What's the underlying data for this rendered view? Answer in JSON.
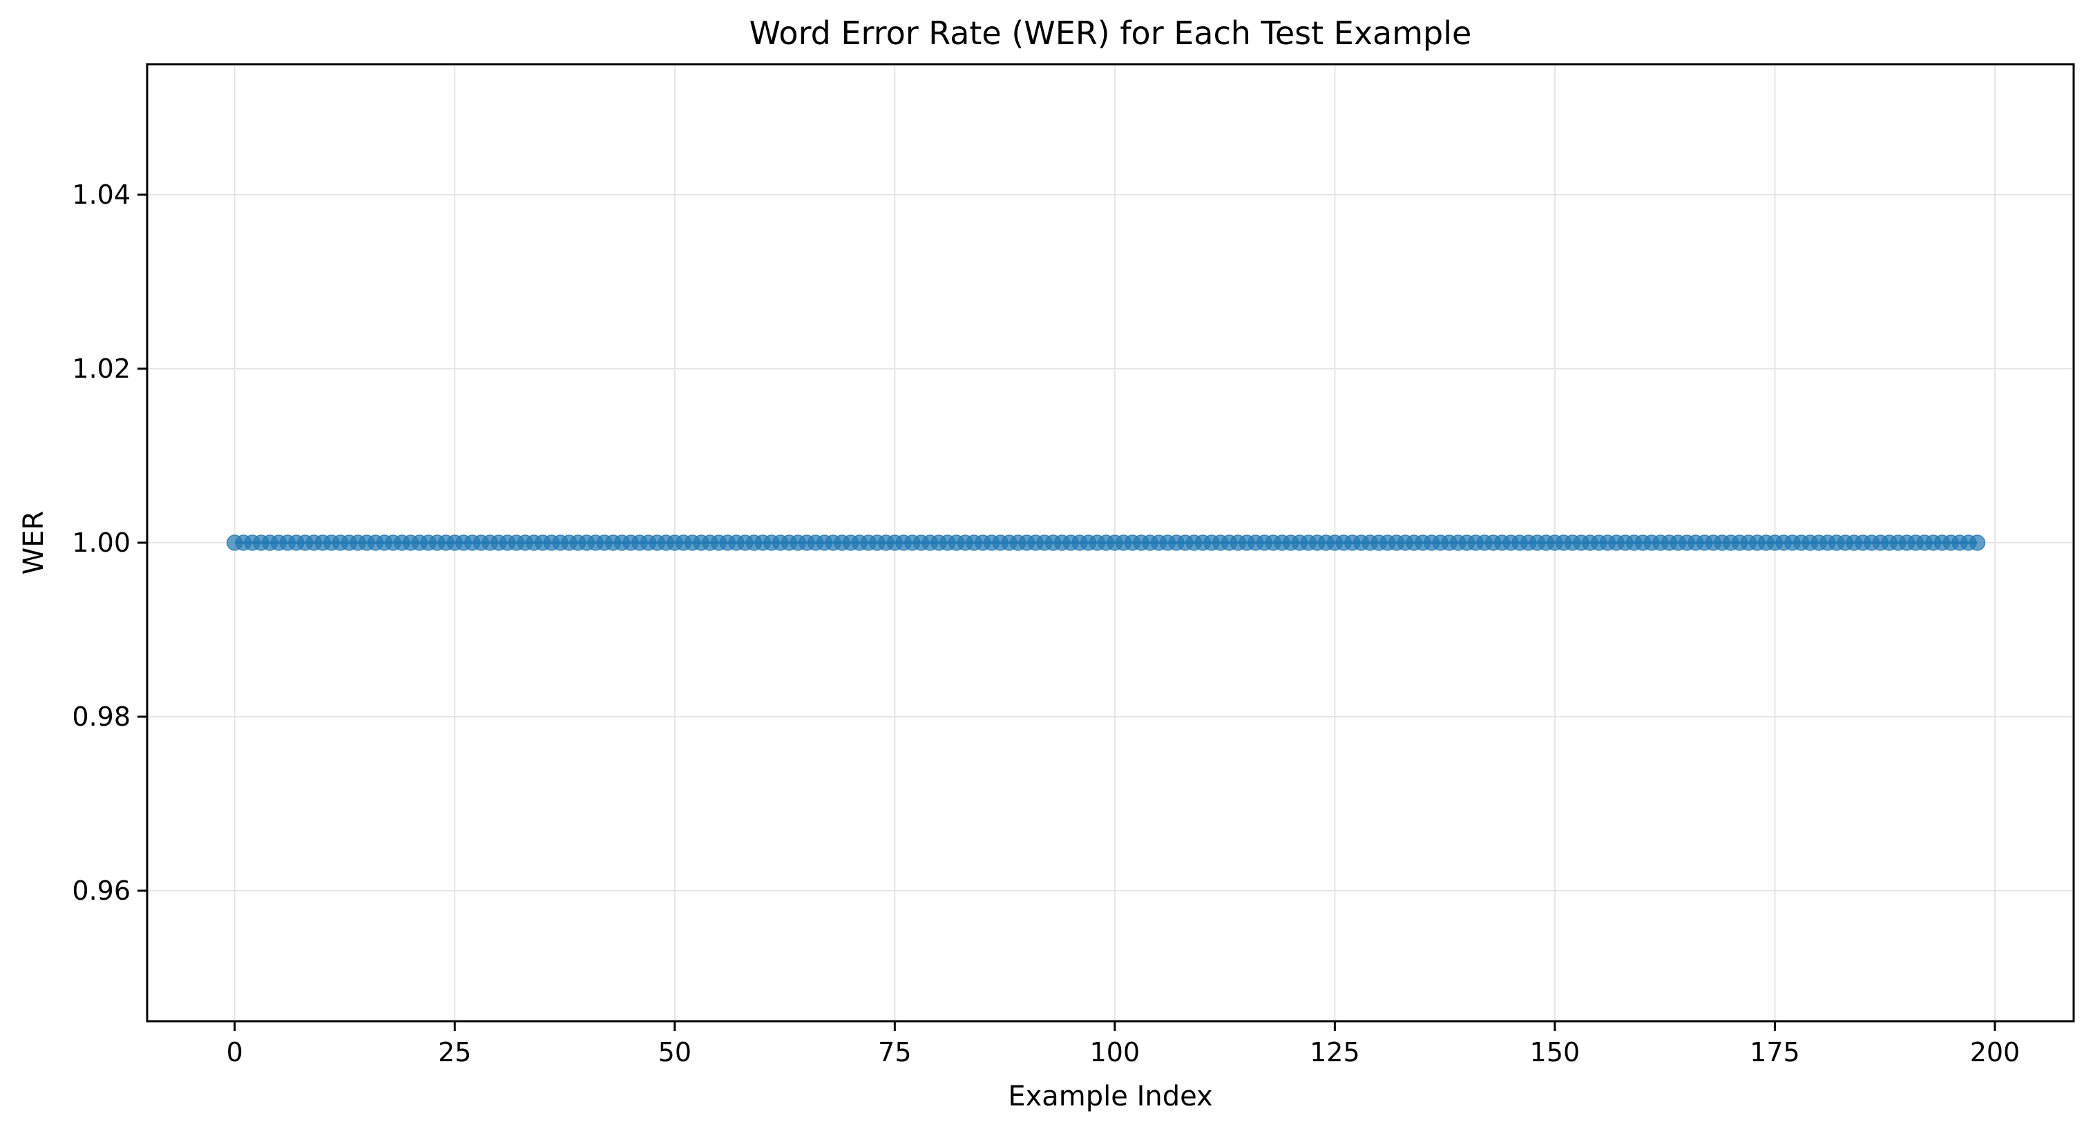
{
  "chart_data": {
    "type": "line",
    "title": "Word Error Rate (WER) for Each Test Example",
    "xlabel": "Example Index",
    "ylabel": "WER",
    "xlim": [
      -9.95,
      208.95
    ],
    "ylim": [
      0.945,
      1.055
    ],
    "xticks": [
      0,
      25,
      50,
      75,
      100,
      125,
      150,
      175,
      200
    ],
    "xtick_labels": [
      "0",
      "25",
      "50",
      "75",
      "100",
      "125",
      "150",
      "175",
      "200"
    ],
    "yticks": [
      0.96,
      0.98,
      1.0,
      1.02,
      1.04
    ],
    "ytick_labels": [
      "0.96",
      "0.98",
      "1.00",
      "1.02",
      "1.04"
    ],
    "grid": true,
    "legend": "none",
    "colors": {
      "series": "#1f77b4",
      "grid": "#e6e6e6",
      "axes": "#000000"
    },
    "markers": "circle",
    "series": [
      {
        "x_start": 0,
        "x_step": 1,
        "count": 199,
        "values": [
          1,
          1,
          1,
          1,
          1,
          1,
          1,
          1,
          1,
          1,
          1,
          1,
          1,
          1,
          1,
          1,
          1,
          1,
          1,
          1,
          1,
          1,
          1,
          1,
          1,
          1,
          1,
          1,
          1,
          1,
          1,
          1,
          1,
          1,
          1,
          1,
          1,
          1,
          1,
          1,
          1,
          1,
          1,
          1,
          1,
          1,
          1,
          1,
          1,
          1,
          1,
          1,
          1,
          1,
          1,
          1,
          1,
          1,
          1,
          1,
          1,
          1,
          1,
          1,
          1,
          1,
          1,
          1,
          1,
          1,
          1,
          1,
          1,
          1,
          1,
          1,
          1,
          1,
          1,
          1,
          1,
          1,
          1,
          1,
          1,
          1,
          1,
          1,
          1,
          1,
          1,
          1,
          1,
          1,
          1,
          1,
          1,
          1,
          1,
          1,
          1,
          1,
          1,
          1,
          1,
          1,
          1,
          1,
          1,
          1,
          1,
          1,
          1,
          1,
          1,
          1,
          1,
          1,
          1,
          1,
          1,
          1,
          1,
          1,
          1,
          1,
          1,
          1,
          1,
          1,
          1,
          1,
          1,
          1,
          1,
          1,
          1,
          1,
          1,
          1,
          1,
          1,
          1,
          1,
          1,
          1,
          1,
          1,
          1,
          1,
          1,
          1,
          1,
          1,
          1,
          1,
          1,
          1,
          1,
          1,
          1,
          1,
          1,
          1,
          1,
          1,
          1,
          1,
          1,
          1,
          1,
          1,
          1,
          1,
          1,
          1,
          1,
          1,
          1,
          1,
          1,
          1,
          1,
          1,
          1,
          1,
          1,
          1,
          1,
          1,
          1,
          1,
          1,
          1,
          1,
          1,
          1,
          1,
          1
        ]
      }
    ]
  }
}
